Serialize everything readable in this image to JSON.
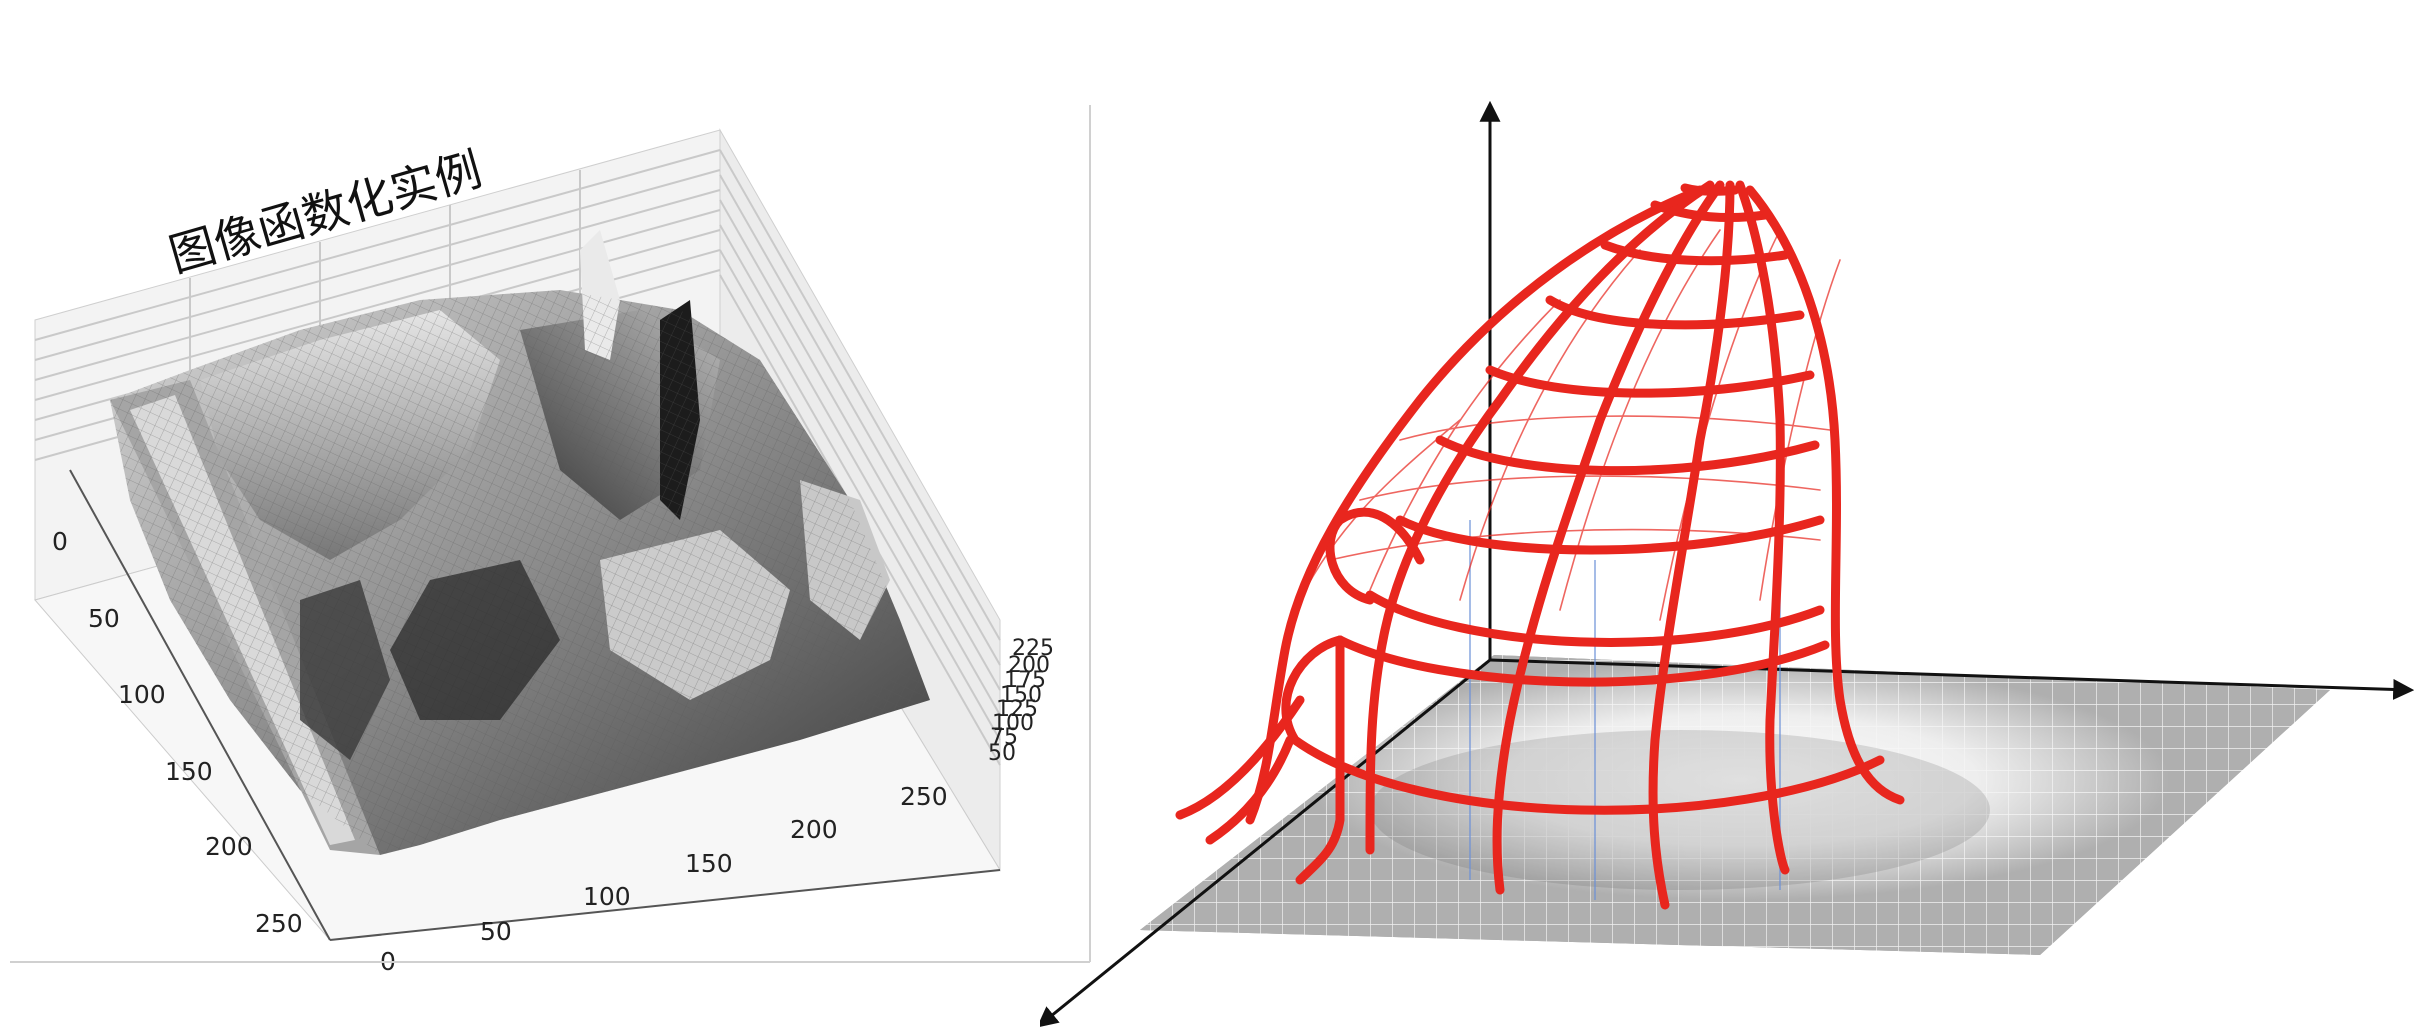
{
  "left_plot": {
    "title": "图像函数化实例",
    "x_ticks": [
      "0",
      "50",
      "100",
      "150",
      "200",
      "250"
    ],
    "y_ticks": [
      "0",
      "50",
      "100",
      "150",
      "200",
      "250"
    ],
    "z_ticks": [
      "50",
      "75",
      "100",
      "125",
      "150",
      "175",
      "200",
      "225"
    ],
    "colormap": "gray"
  },
  "right_diagram": {
    "mesh_color": "#e8261e",
    "axis_color": "#111111",
    "ground_grid": "gray-grid"
  }
}
